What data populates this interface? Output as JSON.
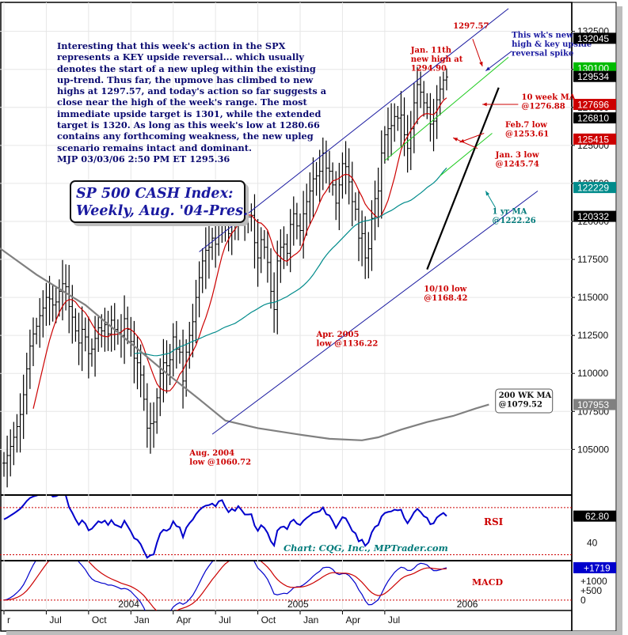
{
  "commentary": "Interesting that this week's action in the SPX represents a KEY upside reversal... which usually denotes the start of a new upleg within the existing up-trend. Thus far, the upmove has climbed to new highs at 1297.57, and today's action so far suggests a close near the high of the week's range. The most immediate upside target is 1301, while the extended target is 1320. As long as this week's low at 1280.66 contains any forthcoming weakness, the new upleg scenario remains intact and dominant.",
  "signature": "MJP  03/03/06  2:50 PM ET  1295.36",
  "colors": {
    "price": "#000000",
    "ma10": "#cc0000",
    "ma52": "#008b8b",
    "ma200": "#808080",
    "channel": "#1a1aa0",
    "green": "#22cc22",
    "rsi": "#0000cc",
    "macd": "#0000cc",
    "macd_signal": "#cc0000",
    "annotation_red": "#cc0000"
  },
  "chart_data": [
    {
      "type": "line",
      "title_lines": [
        "SP 500 CASH Index:",
        "Weekly, Aug. '04-Pres."
      ],
      "y_ticks": [
        105000,
        107500,
        110000,
        112500,
        115000,
        117500,
        120000,
        122500,
        125000,
        127500,
        130000,
        132500
      ],
      "ylim": [
        102000,
        134200
      ],
      "x_ticks": [
        "r",
        "Jul",
        "Oct",
        "Jan",
        "Apr",
        "Jul",
        "Oct",
        "Jan",
        "Apr",
        "Jul"
      ],
      "x_tick_index": [
        0,
        13,
        26,
        39,
        52,
        65,
        78,
        91,
        104,
        117
      ],
      "x_year_labels": [
        {
          "label": "2004",
          "index": 39
        },
        {
          "label": "2005",
          "index": 91
        },
        {
          "label": "2006",
          "index": 143
        }
      ],
      "price_badges": [
        {
          "text": "132045",
          "value": 132045,
          "color": "#000000"
        },
        {
          "text": "130100",
          "value": 130100,
          "color": "#00bb00"
        },
        {
          "text": "129534",
          "value": 129534,
          "color": "#000000"
        },
        {
          "text": "127696",
          "value": 127696,
          "color": "#cc0000"
        },
        {
          "text": "126810",
          "value": 126810,
          "color": "#000000"
        },
        {
          "text": "125415",
          "value": 125415,
          "color": "#cc0000"
        },
        {
          "text": "122229",
          "value": 122229,
          "color": "#008b8b"
        },
        {
          "text": "120332",
          "value": 120332,
          "color": "#000000"
        },
        {
          "text": "107953",
          "value": 107953,
          "color": "#808080"
        }
      ],
      "weekly_close": [
        104.1,
        104.6,
        105.2,
        105.8,
        106.5,
        107.3,
        108.6,
        110.3,
        111.8,
        112.6,
        113.1,
        113.8,
        114.3,
        115.0,
        114.9,
        114.5,
        114.7,
        115.4,
        115.9,
        115.7,
        114.4,
        113.7,
        112.8,
        112.0,
        112.9,
        112.4,
        111.3,
        111.6,
        112.3,
        113.0,
        112.8,
        113.2,
        112.6,
        113.5,
        112.9,
        112.7,
        112.5,
        113.6,
        112.9,
        112.1,
        111.0,
        110.7,
        109.9,
        108.3,
        106.4,
        106.7,
        106.8,
        108.4,
        110.0,
        110.7,
        110.5,
        110.9,
        112.4,
        111.6,
        111.4,
        109.5,
        111.4,
        112.5,
        113.4,
        115.0,
        116.3,
        117.4,
        118.1,
        118.3,
        118.9,
        118.5,
        120.5,
        121.0,
        120.0,
        119.2,
        120.3,
        120.0,
        121.6,
        121.0,
        120.3,
        120.3,
        120.4,
        118.6,
        117.6,
        118.8,
        118.3,
        117.3,
        115.4,
        114.2,
        117.4,
        118.3,
        118.5,
        117.9,
        119.8,
        120.5,
        119.7,
        119.4,
        120.5,
        121.3,
        122.0,
        122.8,
        123.0,
        123.3,
        124.5,
        123.5,
        123.3,
        122.4,
        121.2,
        122.4,
        123.8,
        123.6,
        122.6,
        121.3,
        120.8,
        118.9,
        119.2,
        117.6,
        118.2,
        120.2,
        121.5,
        122.0,
        124.5,
        125.7,
        126.1,
        126.3,
        126.9,
        126.8,
        127.0,
        125.7,
        124.8,
        126.1,
        127.8,
        129.0,
        128.5,
        127.8,
        127.5,
        126.4,
        126.6,
        128.0,
        128.7,
        129.3,
        129.5
      ],
      "series": [
        {
          "key": "price",
          "type": "ohlc"
        },
        {
          "key": "ma10",
          "name": "10 week MA"
        },
        {
          "key": "ma52",
          "name": "1 yr MA"
        },
        {
          "key": "ma200",
          "name": "200 WK MA"
        }
      ],
      "ma200_points": [
        [
          -3,
          1185
        ],
        [
          10,
          1165
        ],
        [
          25,
          1145
        ],
        [
          40,
          1118
        ],
        [
          50,
          1100
        ],
        [
          60,
          1083
        ],
        [
          68,
          1069
        ],
        [
          78,
          1064
        ],
        [
          90,
          1060
        ],
        [
          100,
          1057
        ],
        [
          110,
          1056
        ],
        [
          115,
          1058
        ],
        [
          122,
          1063
        ],
        [
          130,
          1068
        ],
        [
          138,
          1072
        ],
        [
          145,
          1077
        ],
        [
          149,
          1079.5
        ]
      ],
      "channel": {
        "upper": [
          [
            60,
            1180
          ],
          [
            155,
            1340
          ]
        ],
        "lower": [
          [
            64,
            1060
          ],
          [
            164,
            1220
          ]
        ],
        "green_upper": [
          [
            117,
            1240
          ],
          [
            155,
            1308
          ]
        ],
        "green_lower": [
          [
            134,
            1230
          ],
          [
            150,
            1258
          ]
        ],
        "trend": [
          [
            130,
            1168.42
          ],
          [
            152,
            1288
          ]
        ]
      },
      "annotations": [
        {
          "text": "1297.57",
          "color": "red",
          "anchor": [
            138,
            1327
          ]
        },
        {
          "text_lines": [
            "Jan. 11th",
            "new high at",
            "1294.90"
          ],
          "color": "red",
          "anchor": [
            125,
            1311
          ]
        },
        {
          "text_lines": [
            "This wk's new",
            "high & key upside",
            "reversal spike"
          ],
          "color": "blue",
          "anchor": [
            156,
            1321
          ]
        },
        {
          "text_lines": [
            "10 week MA",
            "@1276.88"
          ],
          "color": "red",
          "anchor": [
            159,
            1280
          ]
        },
        {
          "text_lines": [
            "Feb.7 low",
            "@1253.61"
          ],
          "color": "red",
          "anchor": [
            154,
            1262
          ]
        },
        {
          "text_lines": [
            "Jan. 3 low",
            "@1245.74"
          ],
          "color": "red",
          "anchor": [
            151,
            1242
          ]
        },
        {
          "text_lines": [
            "1 yr MA",
            "@1222.26"
          ],
          "color": "teal",
          "anchor": [
            150,
            1205
          ]
        },
        {
          "text_lines": [
            "10/10 low",
            "@1168.42"
          ],
          "color": "red",
          "anchor": [
            129,
            1154
          ]
        },
        {
          "text_lines": [
            "Apr. 2005",
            "low @1136.22"
          ],
          "color": "red",
          "anchor": [
            96,
            1124
          ]
        },
        {
          "text_lines": [
            "Aug. 2004",
            "low @1060.72"
          ],
          "color": "red",
          "anchor": [
            57,
            1046
          ]
        },
        {
          "text_lines": [
            "200 WK MA",
            "@1079.52"
          ],
          "color": "black",
          "anchor": [
            152,
            1084
          ],
          "boxed": true
        }
      ]
    },
    {
      "type": "line",
      "name": "RSI",
      "label": "RSI",
      "y_ticks": [
        40
      ],
      "badge": {
        "text": "62.80",
        "value": 62.8
      },
      "credit": "Chart: CQG, Inc., MPTrader.com",
      "ylim": [
        25,
        80
      ],
      "reference_lines": [
        70,
        30
      ]
    },
    {
      "type": "line",
      "name": "MACD",
      "label": "MACD",
      "y_ticks_text": [
        "+1000",
        "+500",
        "0"
      ],
      "y_ticks_value": [
        1000,
        500,
        0
      ],
      "badge": {
        "text": "+1719",
        "value": 1719
      },
      "ylim": [
        -550,
        2050
      ]
    }
  ]
}
